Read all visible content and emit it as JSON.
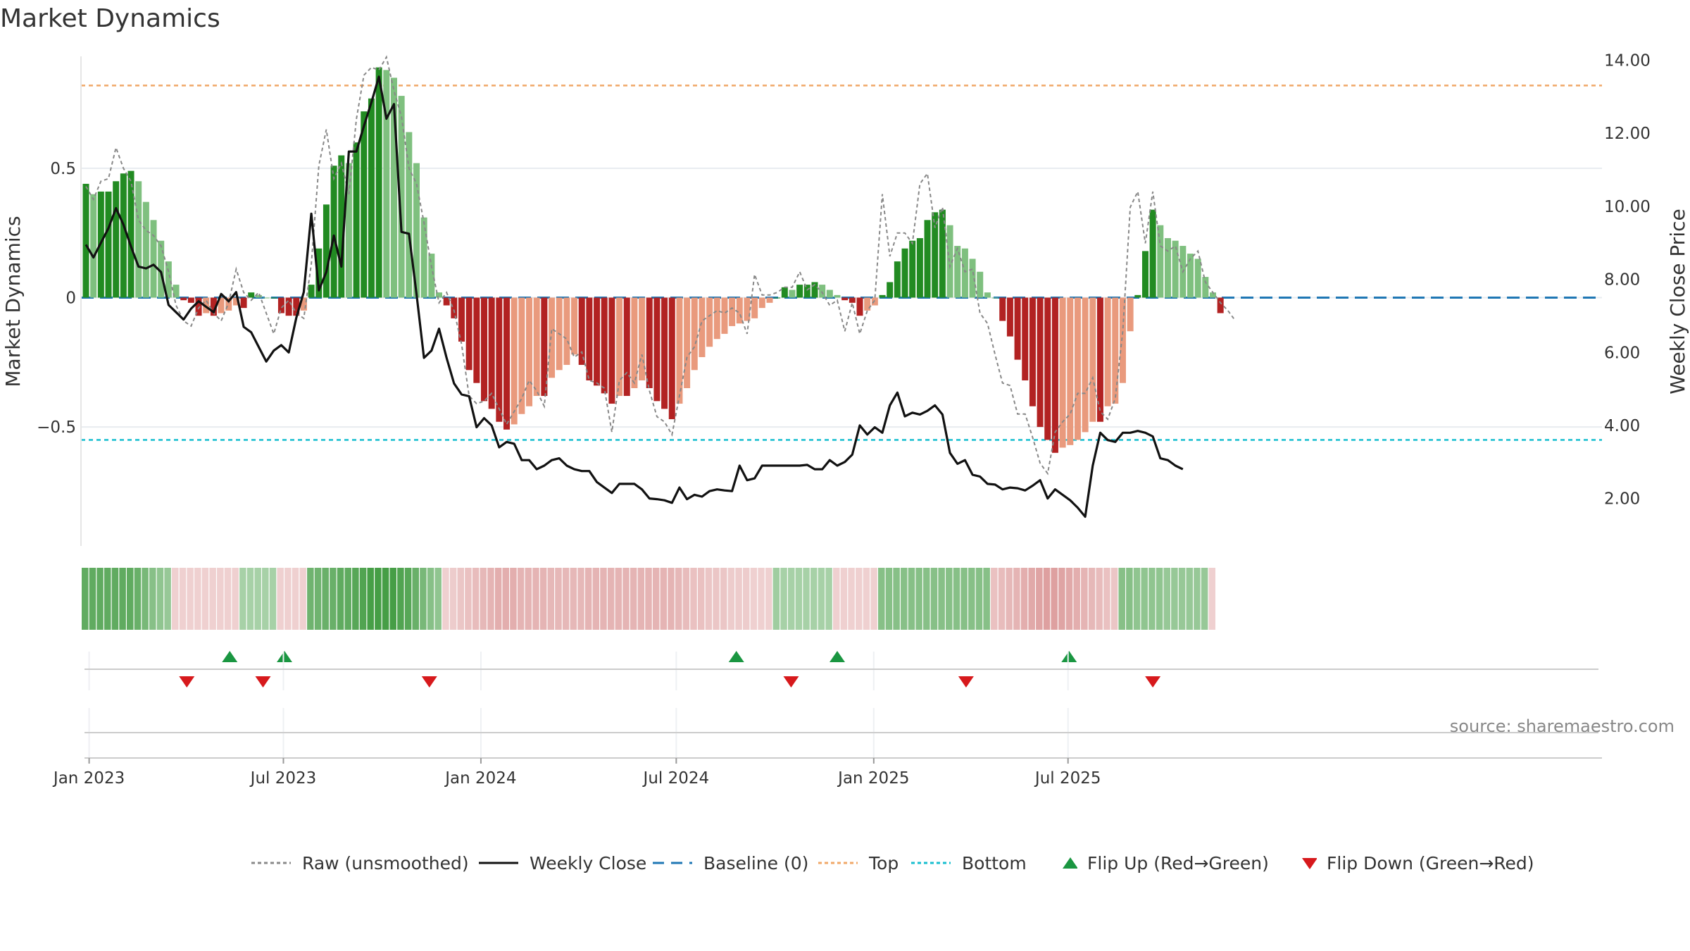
{
  "title": "Market Dynamics",
  "source": "source: sharemaestro.com",
  "chart_data": {
    "type": "bar",
    "x_start": "2022-12-29",
    "x_step_days": 7,
    "left_axis": {
      "label": "Market Dynamics",
      "ticks": [
        "0.5",
        "0",
        "−0.5"
      ],
      "tick_values": [
        0.5,
        0,
        -0.5
      ],
      "ylim": [
        -0.96,
        0.96
      ]
    },
    "right_axis": {
      "label": "Weekly Close Price",
      "ticks": [
        "2.00",
        "4.00",
        "6.00",
        "8.00",
        "10.00",
        "12.00",
        "14.00"
      ],
      "tick_values": [
        2,
        4,
        6,
        8,
        10,
        12,
        14
      ],
      "ylim": [
        0.7,
        14.3
      ]
    },
    "x_ticks": [
      "Jan 2023",
      "Jul 2023",
      "Jan 2024",
      "Jul 2024",
      "Jan 2025",
      "Jul 2025"
    ],
    "x_tick_dates": [
      "2023-01-01",
      "2023-07-01",
      "2024-01-01",
      "2024-07-01",
      "2025-01-01",
      "2025-07-01"
    ],
    "reference_lines": {
      "top": 0.82,
      "baseline": 0,
      "bottom": -0.55
    },
    "colors": {
      "green_strong": "#228b22",
      "green_light": "#7fc07f",
      "red_strong": "#b22222",
      "red_light": "#e99a7d",
      "raw": "#888888",
      "close": "#111111",
      "baseline": "#1f77b4",
      "top": "#f0a868",
      "bottom": "#17becf",
      "flip_up": "#1a9641",
      "flip_down": "#d7191c"
    },
    "series": [
      {
        "name": "Market Dynamics",
        "values": [
          0.44,
          0.4,
          0.41,
          0.41,
          0.45,
          0.48,
          0.49,
          0.45,
          0.37,
          0.3,
          0.22,
          0.14,
          0.05,
          -0.01,
          -0.02,
          -0.07,
          -0.06,
          -0.07,
          -0.06,
          -0.05,
          -0.03,
          -0.04,
          0.02,
          0.01,
          0.0,
          0.0,
          -0.06,
          -0.07,
          -0.07,
          -0.05,
          0.05,
          0.19,
          0.36,
          0.51,
          0.55,
          0.52,
          0.6,
          0.72,
          0.77,
          0.89,
          0.88,
          0.85,
          0.78,
          0.64,
          0.52,
          0.31,
          0.17,
          0.02,
          -0.03,
          -0.08,
          -0.17,
          -0.28,
          -0.33,
          -0.4,
          -0.43,
          -0.48,
          -0.51,
          -0.49,
          -0.45,
          -0.42,
          -0.38,
          -0.38,
          -0.31,
          -0.28,
          -0.26,
          -0.22,
          -0.26,
          -0.32,
          -0.34,
          -0.37,
          -0.41,
          -0.38,
          -0.38,
          -0.35,
          -0.32,
          -0.35,
          -0.4,
          -0.43,
          -0.47,
          -0.41,
          -0.35,
          -0.28,
          -0.23,
          -0.19,
          -0.16,
          -0.14,
          -0.11,
          -0.1,
          -0.09,
          -0.08,
          -0.04,
          -0.02,
          0.0,
          0.04,
          0.03,
          0.05,
          0.05,
          0.06,
          0.05,
          0.03,
          0.01,
          -0.01,
          -0.02,
          -0.07,
          -0.05,
          -0.03,
          0.01,
          0.06,
          0.14,
          0.19,
          0.22,
          0.23,
          0.3,
          0.33,
          0.34,
          0.28,
          0.2,
          0.19,
          0.15,
          0.1,
          0.02,
          0.0,
          -0.09,
          -0.15,
          -0.24,
          -0.32,
          -0.42,
          -0.5,
          -0.55,
          -0.6,
          -0.58,
          -0.57,
          -0.55,
          -0.52,
          -0.48,
          -0.48,
          -0.42,
          -0.41,
          -0.33,
          -0.13,
          0.01,
          0.18,
          0.34,
          0.28,
          0.23,
          0.22,
          0.2,
          0.17,
          0.15,
          0.08,
          0.02,
          -0.06
        ]
      },
      {
        "name": "Raw (unsmoothed)",
        "values": [
          0.43,
          0.38,
          0.45,
          0.46,
          0.58,
          0.5,
          0.45,
          0.3,
          0.26,
          0.24,
          0.2,
          0.1,
          -0.03,
          -0.09,
          -0.11,
          -0.04,
          -0.01,
          -0.06,
          -0.09,
          -0.02,
          0.11,
          0.02,
          -0.01,
          0.02,
          -0.06,
          -0.14,
          -0.04,
          -0.01,
          -0.06,
          -0.08,
          0.13,
          0.51,
          0.65,
          0.46,
          0.52,
          0.4,
          0.69,
          0.86,
          0.89,
          0.88,
          0.93,
          0.8,
          0.7,
          0.5,
          0.44,
          0.29,
          0.12,
          -0.02,
          0.02,
          -0.05,
          -0.18,
          -0.38,
          -0.41,
          -0.4,
          -0.37,
          -0.43,
          -0.49,
          -0.44,
          -0.39,
          -0.32,
          -0.36,
          -0.42,
          -0.12,
          -0.14,
          -0.16,
          -0.23,
          -0.21,
          -0.32,
          -0.33,
          -0.35,
          -0.52,
          -0.32,
          -0.29,
          -0.33,
          -0.22,
          -0.36,
          -0.46,
          -0.48,
          -0.53,
          -0.38,
          -0.23,
          -0.19,
          -0.09,
          -0.07,
          -0.05,
          -0.06,
          -0.04,
          -0.06,
          -0.14,
          0.09,
          0.01,
          0.01,
          0.02,
          0.04,
          0.04,
          0.1,
          0.03,
          0.05,
          0.02,
          -0.03,
          -0.01,
          -0.13,
          -0.02,
          -0.14,
          -0.05,
          -0.01,
          0.4,
          0.16,
          0.25,
          0.25,
          0.21,
          0.44,
          0.48,
          0.27,
          0.35,
          0.12,
          0.19,
          0.1,
          0.11,
          -0.06,
          -0.1,
          -0.22,
          -0.33,
          -0.34,
          -0.45,
          -0.45,
          -0.54,
          -0.64,
          -0.68,
          -0.52,
          -0.48,
          -0.45,
          -0.37,
          -0.37,
          -0.31,
          -0.44,
          -0.47,
          -0.39,
          -0.13,
          0.35,
          0.41,
          0.21,
          0.41,
          0.2,
          0.18,
          0.2,
          0.1,
          0.15,
          0.18,
          0.06,
          0.02,
          -0.02,
          -0.05,
          -0.09
        ]
      },
      {
        "name": "Weekly Close",
        "values": [
          8.95,
          8.6,
          9.0,
          9.4,
          9.95,
          9.5,
          8.9,
          8.35,
          8.3,
          8.4,
          8.2,
          7.3,
          7.1,
          6.9,
          7.2,
          7.4,
          7.25,
          7.1,
          7.6,
          7.4,
          7.65,
          6.7,
          6.55,
          6.15,
          5.75,
          6.05,
          6.2,
          6.0,
          6.95,
          7.65,
          9.8,
          7.7,
          8.2,
          9.2,
          8.35,
          11.5,
          11.5,
          12.2,
          12.85,
          13.55,
          12.4,
          12.8,
          9.3,
          9.25,
          7.6,
          5.85,
          6.05,
          6.65,
          5.85,
          5.15,
          4.85,
          4.8,
          3.95,
          4.2,
          4.0,
          3.4,
          3.55,
          3.5,
          3.05,
          3.05,
          2.8,
          2.9,
          3.05,
          3.1,
          2.9,
          2.8,
          2.75,
          2.75,
          2.45,
          2.3,
          2.15,
          2.4,
          2.4,
          2.4,
          2.25,
          2.0,
          1.98,
          1.95,
          1.88,
          2.3,
          1.98,
          2.1,
          2.05,
          2.2,
          2.25,
          2.22,
          2.2,
          2.9,
          2.5,
          2.55,
          2.9,
          2.9,
          2.9,
          2.9,
          2.9,
          2.9,
          2.92,
          2.8,
          2.8,
          3.05,
          2.9,
          3.0,
          3.2,
          4.0,
          3.75,
          3.95,
          3.8,
          4.55,
          4.9,
          4.25,
          4.35,
          4.3,
          4.4,
          4.55,
          4.3,
          3.25,
          2.95,
          3.05,
          2.65,
          2.6,
          2.4,
          2.38,
          2.25,
          2.3,
          2.28,
          2.22,
          2.35,
          2.5,
          2.0,
          2.25,
          2.1,
          1.95,
          1.75,
          1.5,
          2.9,
          3.8,
          3.6,
          3.55,
          3.8,
          3.8,
          3.85,
          3.8,
          3.7,
          3.1,
          3.05,
          2.9,
          2.8
        ]
      }
    ],
    "regime_strip": [
      0.75,
      0.75,
      0.75,
      0.75,
      0.75,
      0.75,
      0.75,
      0.7,
      0.6,
      0.5,
      0.45,
      0.4,
      -0.2,
      -0.2,
      -0.2,
      -0.2,
      -0.2,
      -0.2,
      -0.2,
      -0.2,
      -0.2,
      0.3,
      0.3,
      0.3,
      0.3,
      0.3,
      -0.2,
      -0.2,
      -0.2,
      -0.2,
      0.65,
      0.65,
      0.7,
      0.7,
      0.75,
      0.75,
      0.8,
      0.85,
      0.9,
      0.92,
      0.92,
      0.92,
      0.85,
      0.8,
      0.7,
      0.6,
      0.5,
      0.45,
      -0.2,
      -0.25,
      -0.3,
      -0.35,
      -0.4,
      -0.45,
      -0.5,
      -0.55,
      -0.55,
      -0.55,
      -0.5,
      -0.5,
      -0.5,
      -0.5,
      -0.45,
      -0.45,
      -0.45,
      -0.45,
      -0.45,
      -0.5,
      -0.5,
      -0.5,
      -0.5,
      -0.5,
      -0.5,
      -0.5,
      -0.5,
      -0.5,
      -0.5,
      -0.5,
      -0.5,
      -0.45,
      -0.4,
      -0.35,
      -0.35,
      -0.3,
      -0.3,
      -0.3,
      -0.25,
      -0.25,
      -0.25,
      -0.2,
      -0.2,
      -0.2,
      0.35,
      0.3,
      0.3,
      0.3,
      0.3,
      0.3,
      0.3,
      0.3,
      -0.2,
      -0.2,
      -0.2,
      -0.2,
      -0.2,
      -0.2,
      0.5,
      0.5,
      0.5,
      0.5,
      0.5,
      0.5,
      0.5,
      0.5,
      0.5,
      0.5,
      0.5,
      0.5,
      0.5,
      0.5,
      0.5,
      -0.35,
      -0.4,
      -0.45,
      -0.5,
      -0.55,
      -0.6,
      -0.65,
      -0.7,
      -0.7,
      -0.65,
      -0.6,
      -0.55,
      -0.5,
      -0.45,
      -0.4,
      -0.35,
      -0.3,
      0.5,
      0.5,
      0.45,
      0.45,
      0.45,
      0.45,
      0.4,
      0.4,
      0.4,
      0.4,
      0.4,
      0.4,
      -0.2
    ],
    "flip_up_dates": [
      "2023-05-12",
      "2023-07-02",
      "2024-08-26",
      "2024-11-28",
      "2025-07-02"
    ],
    "flip_down_dates": [
      "2023-04-02",
      "2023-06-12",
      "2023-11-14",
      "2024-10-16",
      "2025-03-28",
      "2025-09-18"
    ]
  },
  "legend": [
    {
      "label": "Raw (unsmoothed)",
      "symbol": "dashed-line",
      "color": "#888888"
    },
    {
      "label": "Weekly Close",
      "symbol": "solid-line",
      "color": "#111111"
    },
    {
      "label": "Baseline (0)",
      "symbol": "long-dash-line",
      "color": "#1f77b4"
    },
    {
      "label": "Top",
      "symbol": "dashed-line",
      "color": "#f0a868"
    },
    {
      "label": "Bottom",
      "symbol": "dashed-line",
      "color": "#17becf"
    },
    {
      "label": "Flip Up (Red→Green)",
      "symbol": "triangle-up-icon",
      "color": "#1a9641"
    },
    {
      "label": "Flip Down (Green→Red)",
      "symbol": "triangle-down-icon",
      "color": "#d7191c"
    }
  ]
}
